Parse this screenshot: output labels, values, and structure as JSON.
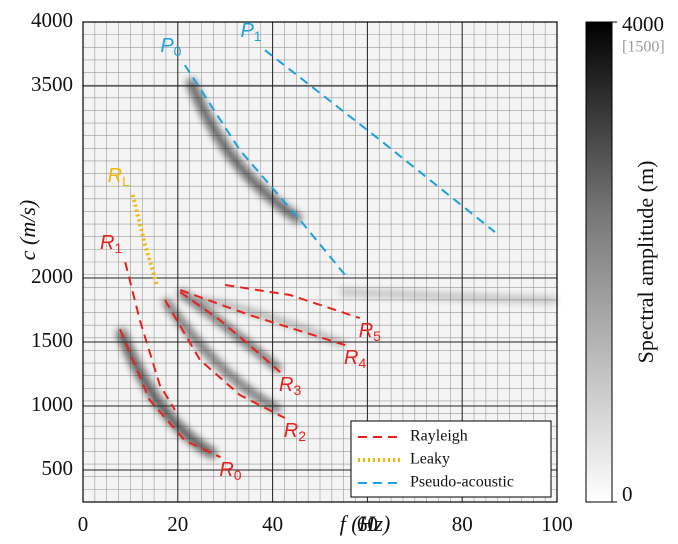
{
  "chart_data": {
    "type": "line",
    "x_label": "f (Hz)",
    "y_label": "c (m/s)",
    "xlim": [
      0,
      100
    ],
    "ylim": [
      250,
      4000
    ],
    "xticks": [
      0,
      20,
      40,
      60,
      80,
      100
    ],
    "yticks": [
      500,
      1000,
      1500,
      2000,
      3500,
      4000
    ],
    "grid": true,
    "legend_position": "lower right",
    "legend": [
      {
        "name": "Rayleigh",
        "color": "#e8211d",
        "dash": "dashed"
      },
      {
        "name": "Leaky",
        "color": "#f2b705",
        "dash": "dotted"
      },
      {
        "name": "Pseudo-acoustic",
        "color": "#1aa3dc",
        "dash": "dashed"
      }
    ],
    "series": [
      {
        "label": "R",
        "sub": "0",
        "color": "#e8211d",
        "dash": "dashed",
        "x": [
          7.8,
          14,
          21.5,
          29
        ],
        "values": [
          1600,
          1050,
          730,
          600
        ]
      },
      {
        "label": "R",
        "sub": "1",
        "color": "#e8211d",
        "dash": "dashed",
        "x": [
          8.9,
          12,
          16.2,
          19.4
        ],
        "values": [
          2124,
          1670,
          1164,
          969
        ]
      },
      {
        "label": "R",
        "sub": "2",
        "color": "#e8211d",
        "dash": "dashed",
        "x": [
          17.3,
          24.7,
          33.1,
          42.6
        ],
        "values": [
          1828,
          1359,
          1086,
          906
        ]
      },
      {
        "label": "R",
        "sub": "3",
        "color": "#e8211d",
        "dash": "dashed",
        "x": [
          20.5,
          28.9,
          36.3,
          41.6
        ],
        "values": [
          1890,
          1671,
          1437,
          1265
        ]
      },
      {
        "label": "R",
        "sub": "4",
        "color": "#e8211d",
        "dash": "dashed",
        "x": [
          20.5,
          35.2,
          55.3
        ],
        "values": [
          1906,
          1710,
          1476
        ]
      },
      {
        "label": "R",
        "sub": "5",
        "color": "#e8211d",
        "dash": "dashed",
        "x": [
          30,
          43.7,
          58.4
        ],
        "values": [
          1945,
          1867,
          1687
        ]
      },
      {
        "label": "R",
        "sub": "L",
        "color": "#f2b705",
        "dash": "dotted",
        "x": [
          10.5,
          13.1,
          15.6
        ],
        "values": [
          2648,
          2257,
          1945
        ]
      },
      {
        "label": "P",
        "sub": "0",
        "color": "#1aa3dc",
        "dash": "dashed",
        "x": [
          21.5,
          33.1,
          45.8,
          55.3
        ],
        "values": [
          3663,
          2999,
          2452,
          2023
        ]
      },
      {
        "label": "P",
        "sub": "1",
        "color": "#1aa3dc",
        "dash": "dashed",
        "x": [
          38.4,
          62.7,
          86.9
        ],
        "values": [
          3780,
          3077,
          2359
        ]
      }
    ],
    "colorbar": {
      "label": "Spectral amplitude (m)",
      "lim": [
        0,
        4000
      ],
      "ticks": [
        0,
        4000
      ],
      "note": "[1500]"
    }
  }
}
